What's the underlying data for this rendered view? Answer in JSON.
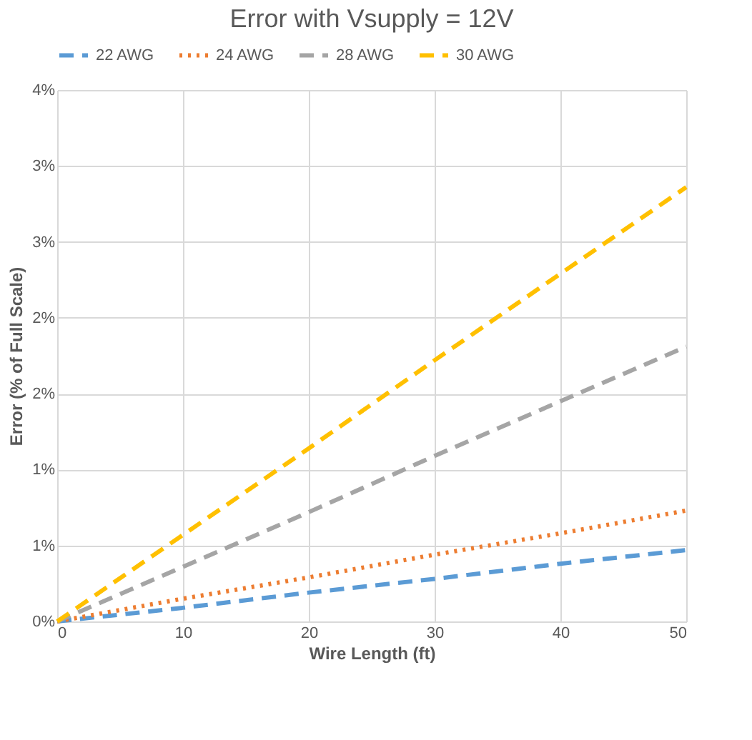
{
  "chart_data": {
    "type": "line",
    "title": "Error with Vsupply = 12V",
    "xlabel": "Wire Length (ft)",
    "ylabel": "Error (% of Full Scale)",
    "x": [
      0,
      10,
      20,
      30,
      40,
      50
    ],
    "series": [
      {
        "name": "22 AWG",
        "color": "#5b9bd5",
        "line_style": "dashed",
        "values": [
          0,
          0.09,
          0.19,
          0.28,
          0.38,
          0.47
        ]
      },
      {
        "name": "24 AWG",
        "color": "#ed7d31",
        "line_style": "dotted",
        "values": [
          0,
          0.15,
          0.29,
          0.44,
          0.58,
          0.73
        ]
      },
      {
        "name": "28 AWG",
        "color": "#a5a5a5",
        "line_style": "dashed",
        "values": [
          0,
          0.36,
          0.72,
          1.09,
          1.45,
          1.81
        ]
      },
      {
        "name": "30 AWG",
        "color": "#ffc000",
        "line_style": "dashed",
        "values": [
          0,
          0.57,
          1.14,
          1.72,
          2.29,
          2.86
        ]
      }
    ],
    "xlim": [
      0,
      50
    ],
    "xticks": [
      0,
      10,
      20,
      30,
      40,
      50
    ],
    "ylim": [
      0,
      3.5
    ],
    "yticks": [
      {
        "value": 0,
        "label": "0%"
      },
      {
        "value": 0.5,
        "label": "1%"
      },
      {
        "value": 1,
        "label": "1%"
      },
      {
        "value": 1.5,
        "label": "2%"
      },
      {
        "value": 2,
        "label": "2%"
      },
      {
        "value": 2.5,
        "label": "3%"
      },
      {
        "value": 3,
        "label": "3%"
      },
      {
        "value": 3.5,
        "label": "4%"
      }
    ],
    "grid": true,
    "legend": "top",
    "marker": "none"
  }
}
